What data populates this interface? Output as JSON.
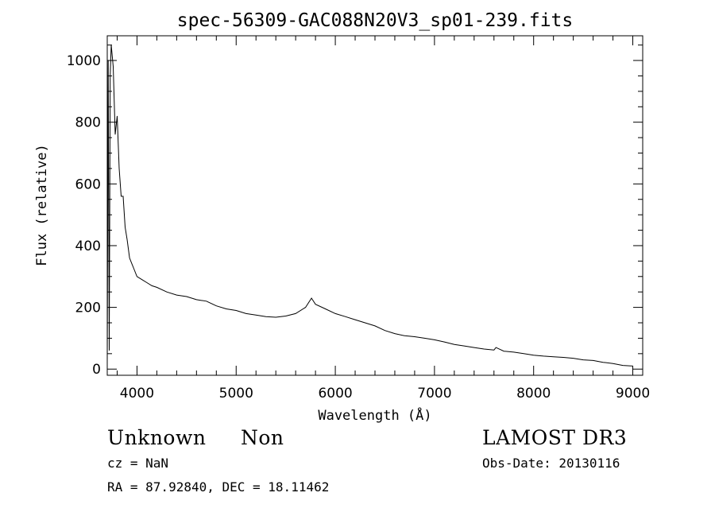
{
  "chart_data": {
    "type": "line",
    "title": "spec-56309-GAC088N20V3_sp01-239.fits",
    "xlabel": "Wavelength (Å)",
    "ylabel": "Flux (relative)",
    "xlim": [
      3700,
      9100
    ],
    "ylim": [
      -20,
      1080
    ],
    "xticks": [
      4000,
      5000,
      6000,
      7000,
      8000,
      9000
    ],
    "yticks": [
      0,
      200,
      400,
      600,
      800,
      1000
    ],
    "xtick_labels": [
      "4000",
      "5000",
      "6000",
      "7000",
      "8000",
      "9000"
    ],
    "ytick_labels": [
      "0",
      "200",
      "400",
      "600",
      "800",
      "1000"
    ],
    "grid": false,
    "series": [
      {
        "name": "spectrum",
        "x": [
          3700,
          3710,
          3720,
          3730,
          3740,
          3760,
          3780,
          3800,
          3820,
          3840,
          3860,
          3880,
          3900,
          3925,
          3950,
          3975,
          4000,
          4050,
          4100,
          4150,
          4200,
          4300,
          4400,
          4500,
          4600,
          4700,
          4800,
          4900,
          5000,
          5100,
          5200,
          5300,
          5400,
          5500,
          5600,
          5700,
          5760,
          5800,
          5900,
          6000,
          6100,
          6200,
          6300,
          6400,
          6500,
          6600,
          6700,
          6800,
          6900,
          7000,
          7100,
          7200,
          7300,
          7400,
          7500,
          7600,
          7620,
          7700,
          7800,
          7900,
          8000,
          8100,
          8200,
          8300,
          8400,
          8500,
          8600,
          8700,
          8800,
          8900,
          9000
        ],
        "y": [
          20,
          1000,
          60,
          950,
          1050,
          980,
          760,
          820,
          650,
          560,
          560,
          460,
          420,
          360,
          340,
          320,
          300,
          290,
          280,
          270,
          265,
          250,
          240,
          235,
          225,
          220,
          205,
          195,
          190,
          180,
          175,
          170,
          168,
          172,
          180,
          200,
          230,
          210,
          195,
          180,
          170,
          160,
          150,
          140,
          125,
          115,
          108,
          105,
          100,
          95,
          88,
          80,
          75,
          70,
          65,
          62,
          70,
          58,
          55,
          50,
          45,
          42,
          40,
          38,
          35,
          30,
          28,
          22,
          18,
          12,
          10
        ]
      }
    ]
  },
  "labels": {
    "object_type": "Unknown",
    "object_subtype": "Non",
    "survey": "LAMOST DR3",
    "cz": "cz = NaN",
    "obs_date": "Obs-Date: 20130116",
    "coords": "RA =  87.92840, DEC =  18.11462"
  }
}
